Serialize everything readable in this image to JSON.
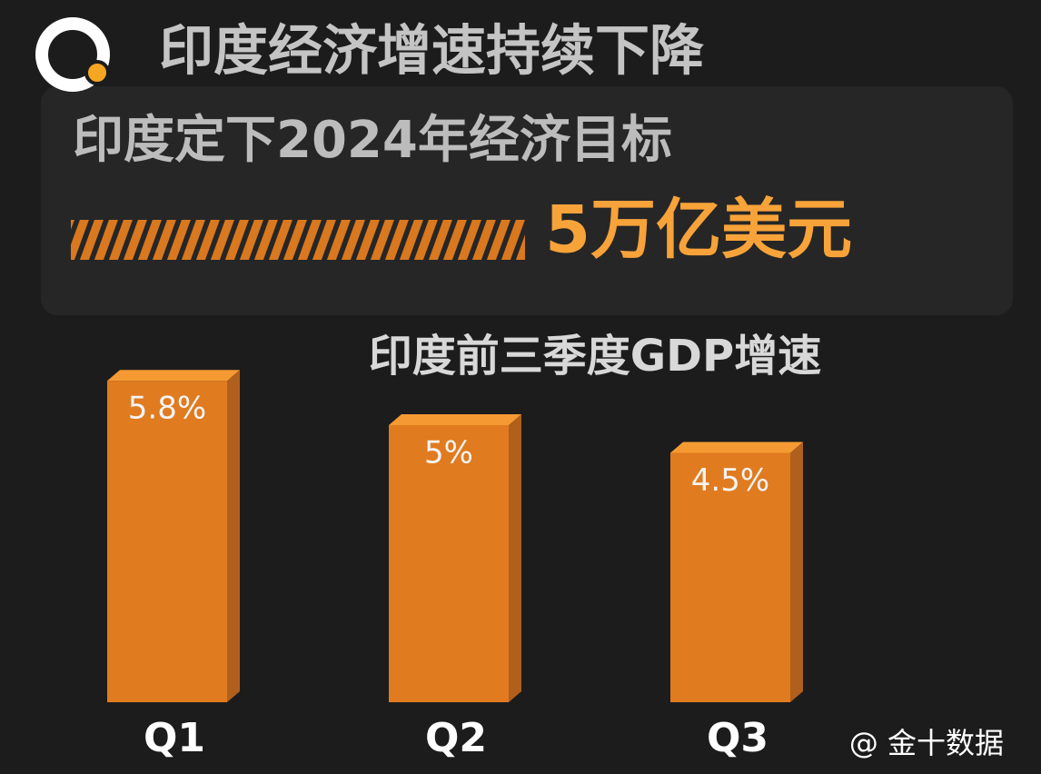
{
  "chart_data": {
    "type": "bar",
    "title": "印度经济增速持续下降",
    "subtitle": "印度定下2024年经济目标",
    "highlight": "5万亿美元",
    "chart_title": "印度前三季度GDP增速",
    "categories": [
      "Q1",
      "Q2",
      "Q3"
    ],
    "values": [
      5.8,
      5,
      4.5
    ],
    "value_labels": [
      "5.8%",
      "5%",
      "4.5%"
    ],
    "color": "#e07b20",
    "source": "@ 金十数据"
  }
}
